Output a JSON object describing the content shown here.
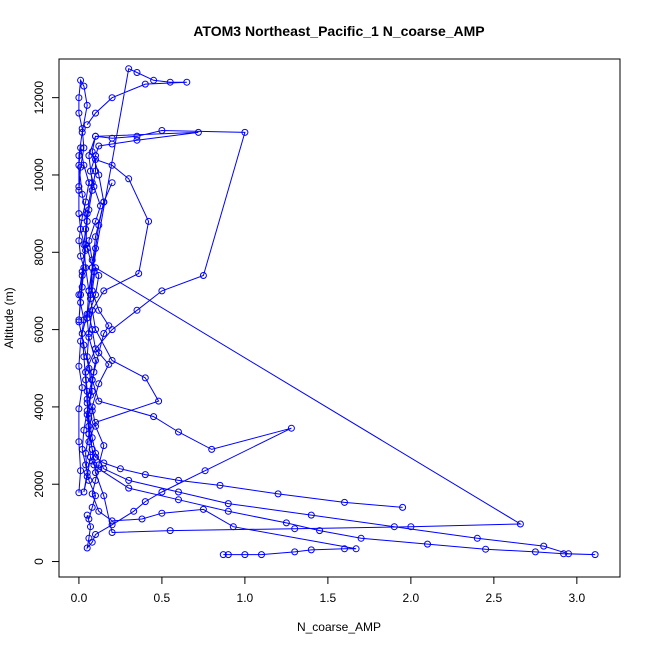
{
  "chart_data": {
    "type": "line",
    "title": "ATOM3 Northeast_Pacific_1 N_coarse_AMP",
    "xlabel": "N_coarse_AMP",
    "ylabel": "Altitude (m)",
    "xlim": [
      -0.12,
      3.26
    ],
    "ylim": [
      -400,
      13000
    ],
    "xticks": [
      0,
      0.5,
      1,
      1.5,
      2,
      2.5,
      3
    ],
    "xtick_labels": [
      "0.0",
      "0.5",
      "1.0",
      "1.5",
      "2.0",
      "2.5",
      "3.0"
    ],
    "yticks": [
      0,
      2000,
      4000,
      6000,
      8000,
      10000,
      12000
    ],
    "ytick_labels": [
      "0",
      "2000",
      "4000",
      "6000",
      "8000",
      "10000",
      "12000"
    ],
    "grid": false,
    "legend": "none",
    "marker": "open-circle",
    "series_color": "#0000ff",
    "series": [
      {
        "x": [
          0.87,
          0.9,
          1.0,
          1.1,
          1.3,
          1.4,
          1.6,
          1.67,
          0.93,
          0.75,
          0.5,
          0.38,
          0.2,
          0.12,
          0.08,
          0.1,
          0.12,
          0.15,
          0.1,
          0.08,
          0.12,
          0.18,
          0.1,
          0.08,
          0.06,
          0.1,
          0.12,
          0.08,
          0.06,
          0.1,
          0.13,
          0.09,
          0.07,
          0.1,
          0.12,
          0.2,
          0.35,
          0.72,
          0.1,
          0.08,
          0.12,
          0.15,
          0.1,
          0.08,
          0.07,
          0.1,
          0.2,
          0.4,
          0.48,
          0.1,
          0.06,
          0.07,
          0.05,
          0.03,
          0.05,
          0.04,
          0.06,
          0.08,
          0.05,
          0.04,
          0.1,
          0.2,
          0.35,
          0.5,
          0.75,
          1.0,
          0.5,
          0.35,
          0.2,
          0.1,
          0.06,
          0.08,
          0.05,
          0.03,
          0.04,
          0.06,
          0.3,
          0.35,
          0.45,
          0.55,
          0.65,
          0.4,
          0.2,
          0.1,
          0.05
        ],
        "y": [
          180,
          180,
          180,
          180,
          250,
          300,
          330,
          330,
          900,
          1350,
          1250,
          1100,
          1050,
          1300,
          1750,
          2100,
          2500,
          3000,
          3500,
          4000,
          4600,
          5100,
          5500,
          6000,
          6400,
          6900,
          7400,
          7800,
          8300,
          8800,
          9200,
          9700,
          10100,
          10500,
          10750,
          10800,
          10900,
          11100,
          11000,
          10600,
          10000,
          9300,
          8400,
          7600,
          6800,
          6000,
          5200,
          4750,
          4150,
          3600,
          3100,
          2700,
          2200,
          1800,
          2300,
          2800,
          3300,
          3900,
          4400,
          4900,
          5500,
          6000,
          6500,
          7000,
          7400,
          11100,
          11150,
          11000,
          10950,
          11000,
          10500,
          9800,
          9000,
          8200,
          7600,
          7000,
          12750,
          12650,
          12450,
          12400,
          12400,
          12350,
          12000,
          11600,
          11300
        ]
      },
      {
        "x": [
          0.07,
          0.08,
          0.09,
          0.12,
          0.3,
          0.6,
          0.9,
          1.25,
          1.45,
          1.7,
          2.1,
          2.45,
          2.75,
          2.92,
          3.11,
          2.95,
          2.8,
          2.4,
          1.9,
          1.4,
          0.9,
          0.6,
          0.3,
          0.15,
          0.1,
          0.08,
          0.06,
          0.05,
          0.08,
          0.1,
          0.06,
          0.05,
          0.07,
          0.09,
          0.05,
          0.04,
          0.06,
          0.08,
          0.1,
          0.1,
          0.2,
          0.3,
          0.42,
          0.36,
          0.15,
          0.08,
          0.06,
          0.05,
          0.08,
          0.12,
          0.45,
          0.6,
          0.8,
          1.28,
          0.76,
          0.5,
          0.4,
          0.33,
          0.2,
          0.1,
          0.08,
          0.05,
          0.06,
          0.07,
          0.05
        ],
        "y": [
          2700,
          2600,
          2500,
          2400,
          1900,
          1600,
          1300,
          1000,
          800,
          600,
          450,
          320,
          250,
          200,
          180,
          200,
          400,
          600,
          900,
          1200,
          1500,
          1800,
          2100,
          2400,
          2800,
          3200,
          3700,
          4200,
          4700,
          5200,
          5800,
          6300,
          6900,
          7500,
          8100,
          8600,
          9100,
          9600,
          10100,
          10400,
          10250,
          9900,
          8800,
          7450,
          7000,
          6500,
          5900,
          5300,
          4700,
          4150,
          3750,
          3350,
          2900,
          3450,
          2350,
          1800,
          1550,
          1300,
          950,
          700,
          500,
          350,
          600,
          900,
          1200
        ]
      },
      {
        "x": [
          0.0,
          0.01,
          0.0,
          0.0,
          0.02,
          0.0,
          0.01,
          0.03,
          0.0,
          0.02,
          0.04,
          0.01,
          0.0,
          0.0,
          0.01,
          0.03,
          0.02,
          0.0,
          0.0,
          0.01,
          0.03,
          0.05,
          0.02,
          0.0,
          0.0
        ],
        "y": [
          1780,
          2350,
          3100,
          3950,
          4500,
          5050,
          5700,
          6250,
          6900,
          7500,
          8050,
          8600,
          9000,
          9600,
          10200,
          10700,
          11200,
          11600,
          12000,
          12450,
          12300,
          11800,
          11100,
          10500,
          9700
        ]
      },
      {
        "x": [
          1.95,
          1.6,
          1.2,
          0.85,
          0.6,
          0.4,
          0.25,
          0.15,
          0.1,
          0.08,
          0.06,
          0.05,
          0.07,
          0.09,
          0.12,
          0.15,
          0.18,
          0.12,
          0.08,
          0.1,
          2.66,
          2.0,
          1.3,
          0.55,
          0.2,
          0.15,
          0.1,
          0.08,
          0.06,
          0.05,
          0.04,
          0.03,
          0.02,
          0.05,
          0.06,
          0.08,
          0.1,
          0.12,
          0.15,
          0.2
        ],
        "y": [
          1400,
          1530,
          1750,
          1970,
          2100,
          2250,
          2400,
          2550,
          2700,
          2900,
          3300,
          3800,
          4300,
          4900,
          5400,
          5900,
          6100,
          6500,
          7000,
          7600,
          970,
          900,
          850,
          800,
          750,
          1700,
          2300,
          2900,
          3500,
          4100,
          4700,
          5300,
          5900,
          6400,
          7000,
          7600,
          8100,
          8700,
          9300,
          9800
        ]
      },
      {
        "x": [
          0.0,
          0.01,
          0.02,
          0.03,
          0.01,
          0.0,
          0.02,
          0.04,
          0.06,
          0.03,
          0.01,
          0.0,
          0.02,
          0.05,
          0.04,
          0.02,
          0.01,
          0.0,
          0.03,
          0.06,
          0.08,
          0.05,
          0.03,
          0.02,
          0.04,
          0.06,
          0.1,
          0.08,
          0.06
        ],
        "y": [
          6250,
          6700,
          7100,
          7600,
          7900,
          8300,
          8900,
          9300,
          9800,
          10250,
          10700,
          10250,
          9500,
          8800,
          8200,
          7400,
          6900,
          6200,
          5600,
          5000,
          4400,
          3900,
          3400,
          2900,
          2500,
          2100,
          1700,
          1400,
          1100
        ]
      }
    ]
  }
}
